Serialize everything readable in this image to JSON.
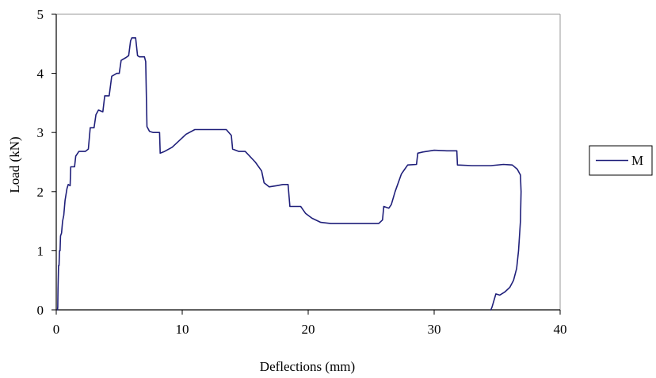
{
  "chart_data": {
    "type": "line",
    "title": "",
    "xlabel": "Deflections (mm)",
    "ylabel": "Load (kN)",
    "xlim": [
      0,
      40
    ],
    "ylim": [
      0,
      5
    ],
    "xticks": [
      0,
      10,
      20,
      30,
      40
    ],
    "yticks": [
      0,
      1,
      2,
      3,
      4,
      5
    ],
    "grid": false,
    "legend_position": "right",
    "series": [
      {
        "name": "M",
        "color": "#1f1f7a",
        "points": [
          [
            0.1,
            0
          ],
          [
            0.12,
            0.05
          ],
          [
            0.14,
            0.35
          ],
          [
            0.18,
            0.75
          ],
          [
            0.22,
            0.75
          ],
          [
            0.26,
            1.0
          ],
          [
            0.3,
            1.0
          ],
          [
            0.34,
            1.25
          ],
          [
            0.42,
            1.3
          ],
          [
            0.5,
            1.5
          ],
          [
            0.6,
            1.6
          ],
          [
            0.7,
            1.85
          ],
          [
            0.85,
            2.05
          ],
          [
            0.95,
            2.12
          ],
          [
            1.1,
            2.1
          ],
          [
            1.15,
            2.42
          ],
          [
            1.45,
            2.42
          ],
          [
            1.55,
            2.6
          ],
          [
            1.8,
            2.68
          ],
          [
            2.3,
            2.68
          ],
          [
            2.55,
            2.72
          ],
          [
            2.7,
            3.08
          ],
          [
            3.0,
            3.08
          ],
          [
            3.15,
            3.3
          ],
          [
            3.35,
            3.38
          ],
          [
            3.7,
            3.35
          ],
          [
            3.85,
            3.62
          ],
          [
            4.2,
            3.62
          ],
          [
            4.4,
            3.95
          ],
          [
            4.8,
            4.0
          ],
          [
            5.0,
            4.0
          ],
          [
            5.15,
            4.22
          ],
          [
            5.55,
            4.27
          ],
          [
            5.75,
            4.3
          ],
          [
            5.9,
            4.55
          ],
          [
            6.0,
            4.6
          ],
          [
            6.3,
            4.6
          ],
          [
            6.45,
            4.3
          ],
          [
            6.6,
            4.28
          ],
          [
            7.0,
            4.28
          ],
          [
            7.1,
            4.2
          ],
          [
            7.2,
            3.1
          ],
          [
            7.4,
            3.02
          ],
          [
            7.7,
            3.0
          ],
          [
            8.2,
            3.0
          ],
          [
            8.25,
            2.65
          ],
          [
            8.6,
            2.68
          ],
          [
            9.2,
            2.75
          ],
          [
            9.7,
            2.85
          ],
          [
            10.3,
            2.97
          ],
          [
            11.0,
            3.05
          ],
          [
            12.5,
            3.05
          ],
          [
            13.5,
            3.05
          ],
          [
            13.9,
            2.95
          ],
          [
            14.0,
            2.72
          ],
          [
            14.5,
            2.68
          ],
          [
            15.0,
            2.68
          ],
          [
            15.8,
            2.5
          ],
          [
            16.3,
            2.35
          ],
          [
            16.5,
            2.15
          ],
          [
            16.9,
            2.08
          ],
          [
            17.5,
            2.1
          ],
          [
            18.0,
            2.12
          ],
          [
            18.4,
            2.12
          ],
          [
            18.55,
            1.75
          ],
          [
            19.0,
            1.75
          ],
          [
            19.4,
            1.75
          ],
          [
            19.8,
            1.63
          ],
          [
            20.3,
            1.55
          ],
          [
            21.0,
            1.48
          ],
          [
            21.8,
            1.46
          ],
          [
            24.0,
            1.46
          ],
          [
            25.6,
            1.46
          ],
          [
            25.9,
            1.52
          ],
          [
            26.0,
            1.75
          ],
          [
            26.4,
            1.72
          ],
          [
            26.6,
            1.78
          ],
          [
            26.9,
            2.0
          ],
          [
            27.4,
            2.3
          ],
          [
            27.9,
            2.45
          ],
          [
            28.6,
            2.46
          ],
          [
            28.7,
            2.65
          ],
          [
            29.1,
            2.67
          ],
          [
            30.0,
            2.7
          ],
          [
            31.0,
            2.69
          ],
          [
            31.8,
            2.69
          ],
          [
            31.85,
            2.45
          ],
          [
            33.0,
            2.44
          ],
          [
            34.5,
            2.44
          ],
          [
            35.5,
            2.46
          ],
          [
            36.2,
            2.45
          ],
          [
            36.6,
            2.38
          ],
          [
            36.85,
            2.28
          ],
          [
            36.9,
            2.0
          ],
          [
            36.85,
            1.5
          ],
          [
            36.7,
            1.0
          ],
          [
            36.55,
            0.7
          ],
          [
            36.3,
            0.5
          ],
          [
            36.0,
            0.38
          ],
          [
            35.6,
            0.3
          ],
          [
            35.2,
            0.25
          ],
          [
            34.9,
            0.27
          ],
          [
            34.6,
            0.05
          ],
          [
            34.5,
            0
          ]
        ]
      }
    ]
  }
}
